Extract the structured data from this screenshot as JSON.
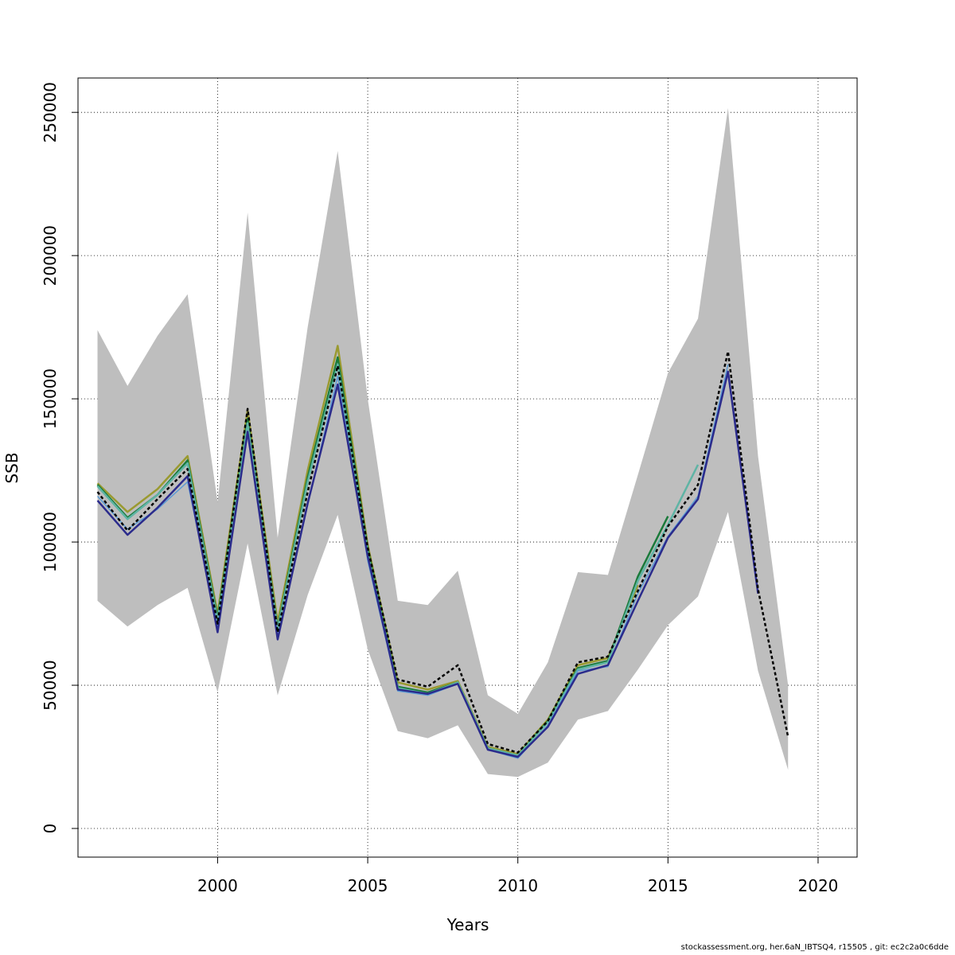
{
  "chart_data": {
    "type": "line",
    "xlabel": "Years",
    "ylabel": "SSB",
    "xlim": [
      1995.35,
      2021.3
    ],
    "ylim": [
      -10000,
      262000
    ],
    "x_ticks": [
      2000,
      2005,
      2010,
      2015,
      2020
    ],
    "y_ticks": [
      0,
      50000,
      100000,
      150000,
      200000,
      250000
    ],
    "grid": true,
    "band": {
      "color": "#bebebe",
      "x": [
        1996,
        1997,
        1998,
        1999,
        2000,
        2001,
        2002,
        2003,
        2004,
        2005,
        2006,
        2007,
        2008,
        2009,
        2010,
        2011,
        2012,
        2013,
        2014,
        2015,
        2016,
        2017,
        2018,
        2019
      ],
      "upper": [
        174000,
        154500,
        172000,
        186500,
        114000,
        215000,
        101500,
        175000,
        236500,
        150000,
        79500,
        78000,
        90000,
        46500,
        40000,
        58000,
        89500,
        88500,
        123500,
        159000,
        178000,
        251500,
        130000,
        50000
      ],
      "lower": [
        79500,
        70500,
        78000,
        84000,
        47500,
        99500,
        46500,
        81500,
        109500,
        62500,
        34000,
        31500,
        36000,
        19000,
        18000,
        23000,
        38000,
        41000,
        55500,
        71000,
        81000,
        110500,
        55000,
        20500
      ]
    },
    "series": [
      {
        "color": "#000000",
        "dash": true,
        "width": 2.5,
        "x": [
          1996,
          1997,
          1998,
          1999,
          2000,
          2001,
          2002,
          2003,
          2004,
          2005,
          2006,
          2007,
          2008,
          2009,
          2010,
          2011,
          2012,
          2013,
          2014,
          2015,
          2016,
          2017,
          2018,
          2019
        ],
        "values": [
          117500,
          104000,
          115000,
          125500,
          71500,
          146500,
          68500,
          117500,
          161500,
          98000,
          52000,
          49500,
          57000,
          29500,
          26500,
          37500,
          58000,
          60000,
          83000,
          105500,
          120000,
          166500,
          83500,
          32000
        ]
      },
      {
        "color": "#2b2b8c",
        "width": 2.5,
        "x": [
          1996,
          1997,
          1998,
          1999,
          2000,
          2001,
          2002,
          2003,
          2004,
          2005,
          2006,
          2007,
          2008,
          2009,
          2010,
          2011,
          2012,
          2013,
          2014,
          2015,
          2016,
          2017,
          2018
        ],
        "values": [
          114500,
          102500,
          112000,
          123000,
          68500,
          138500,
          66000,
          113500,
          155000,
          95000,
          48500,
          47000,
          50500,
          27500,
          25000,
          35500,
          54000,
          57000,
          79500,
          101500,
          115000,
          159500,
          82000
        ]
      },
      {
        "color": "#5b9bd5",
        "width": 1.5,
        "x": [
          1996,
          1997,
          1998,
          1999,
          2000,
          2001,
          2002,
          2003,
          2004,
          2005,
          2006,
          2007,
          2008,
          2009,
          2010,
          2011,
          2012,
          2013,
          2014,
          2015,
          2016,
          2017
        ],
        "values": [
          116000,
          104500,
          111500,
          121000,
          70500,
          138000,
          67000,
          113000,
          158000,
          93500,
          48000,
          46500,
          50500,
          27500,
          24500,
          36000,
          55000,
          56500,
          82000,
          102000,
          116000,
          162000
        ]
      },
      {
        "color": "#5fb4a5",
        "width": 2.5,
        "x": [
          1996,
          1997,
          1998,
          1999,
          2000,
          2001,
          2002,
          2003,
          2004,
          2005,
          2006,
          2007,
          2008,
          2009,
          2010,
          2011,
          2012,
          2013,
          2014,
          2015,
          2016
        ],
        "values": [
          119500,
          108000,
          116500,
          127500,
          72500,
          141500,
          69500,
          121000,
          162000,
          96000,
          49000,
          47000,
          51000,
          28000,
          25500,
          37000,
          55500,
          58000,
          86500,
          106000,
          127000
        ]
      },
      {
        "color": "#1a7a3a",
        "width": 2.5,
        "x": [
          1996,
          1997,
          1998,
          1999,
          2000,
          2001,
          2002,
          2003,
          2004,
          2005,
          2006,
          2007,
          2008,
          2009,
          2010,
          2011,
          2012,
          2013,
          2014,
          2015
        ],
        "values": [
          120000,
          108500,
          116500,
          128500,
          73500,
          143000,
          70000,
          122500,
          164500,
          97500,
          49500,
          47500,
          51000,
          28000,
          25500,
          37500,
          56000,
          58500,
          88000,
          109000
        ]
      },
      {
        "color": "#9a9a30",
        "width": 2.5,
        "x": [
          1996,
          1997,
          1998,
          1999,
          2000,
          2001,
          2002,
          2003,
          2004,
          2005,
          2006,
          2007,
          2008,
          2009,
          2010,
          2011,
          2012,
          2013,
          2014
        ],
        "values": [
          120500,
          110500,
          118500,
          130000,
          75000,
          146000,
          72000,
          125000,
          168500,
          99000,
          51000,
          48500,
          51500,
          28500,
          26000,
          38000,
          57000,
          59500,
          85000
        ]
      }
    ]
  },
  "footer": "stockassessment.org, her.6aN_IBTSQ4, r15505 , git: ec2c2a0c6dde"
}
